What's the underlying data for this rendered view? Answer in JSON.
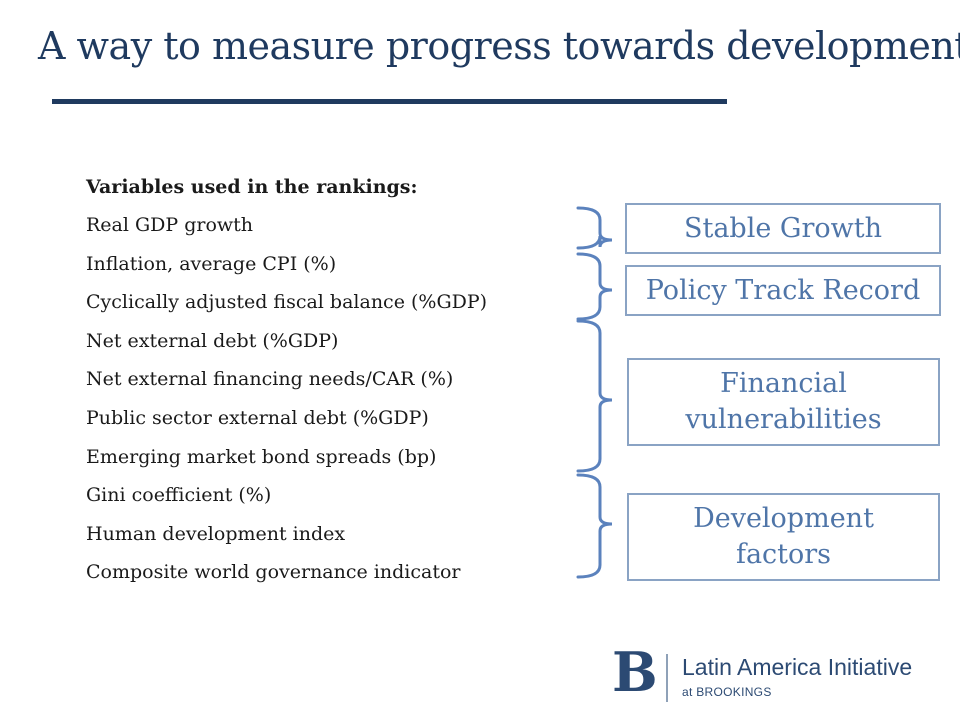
{
  "slide": {
    "title": "A way to measure progress towards development"
  },
  "variables": {
    "heading": "Variables used in the rankings:",
    "items": [
      "Real GDP growth",
      "Inflation, average CPI (%)",
      "Cyclically adjusted fiscal balance (%GDP)",
      "Net external debt (%GDP)",
      "Net external financing needs/CAR (%)",
      "Public sector external debt (%GDP)",
      "Emerging market bond spreads (bp)",
      "Gini coefficient (%)",
      "Human development index",
      "Composite world governance indicator"
    ]
  },
  "categories": {
    "stable_growth": "Stable Growth",
    "policy_track_record": "Policy Track Record",
    "financial_vulnerabilities_line1": "Financial",
    "financial_vulnerabilities_line2": "vulnerabilities",
    "development_factors_line1": "Development",
    "development_factors_line2": "factors"
  },
  "logo": {
    "mark": "B",
    "name": "Latin America Initiative",
    "sub": "at BROOKINGS"
  },
  "colors": {
    "title": "#1f3a5f",
    "box_border": "#8aa3c4",
    "box_text": "#4f75a8",
    "brace": "#5b82bd"
  }
}
